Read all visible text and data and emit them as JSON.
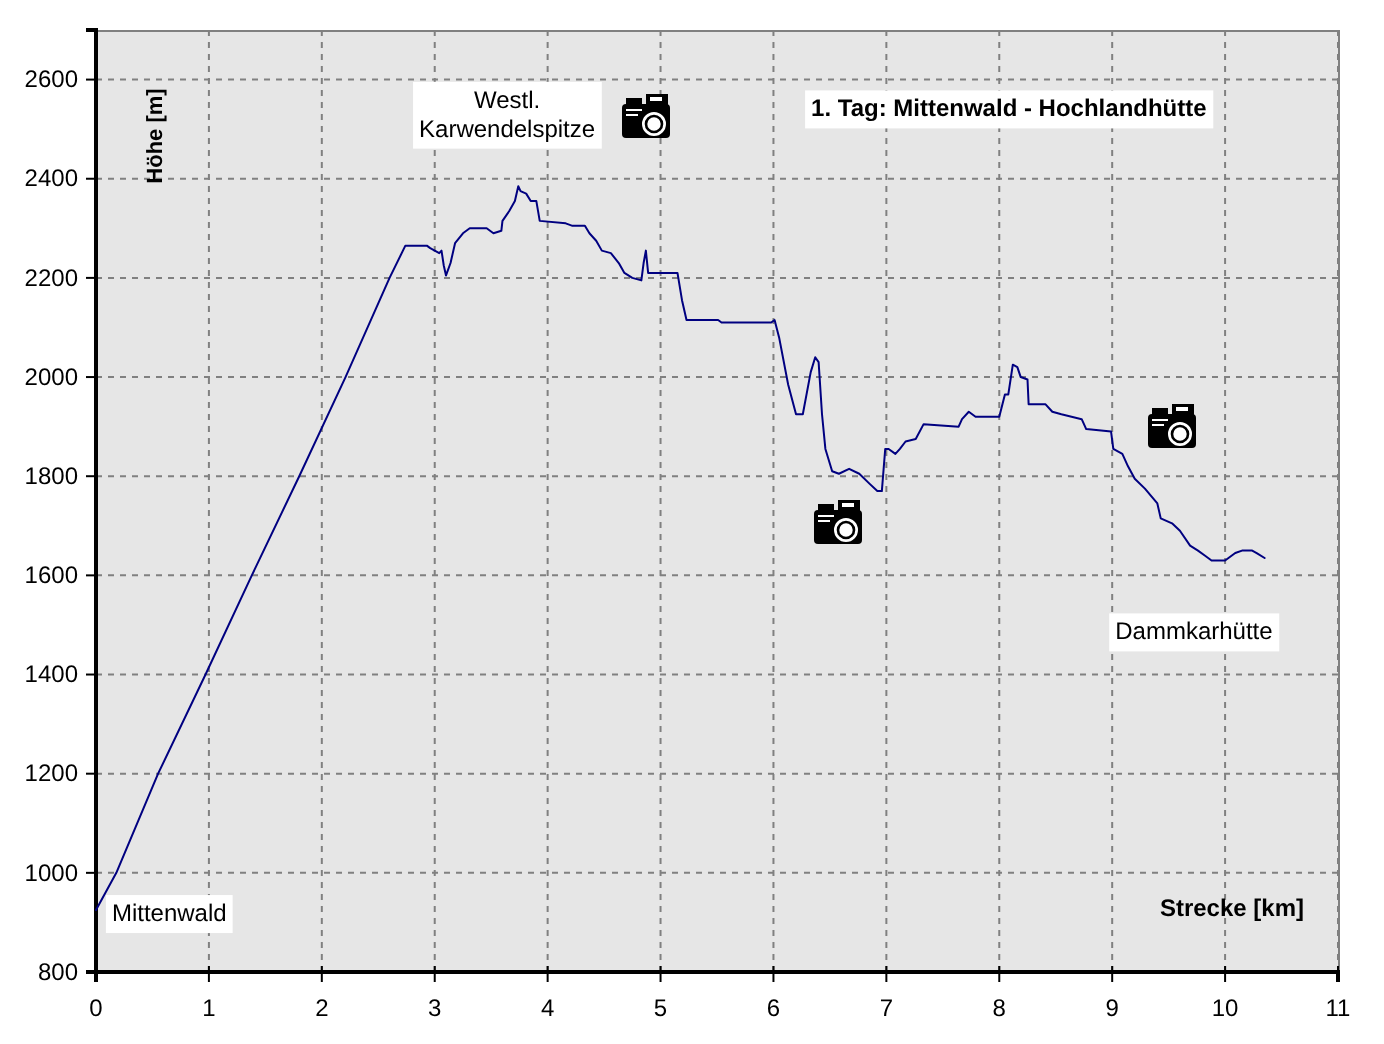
{
  "chart_data": {
    "type": "line",
    "title": "1. Tag: Mittenwald - Hochlandhütte",
    "xlabel": "Strecke [km]",
    "ylabel": "Höhe [m]",
    "x": [
      0,
      0.18,
      0.55,
      0.97,
      1.38,
      1.8,
      2.21,
      2.6,
      2.74,
      2.93,
      2.96,
      3.0,
      3.04,
      3.06,
      3.08,
      3.1,
      3.14,
      3.18,
      3.25,
      3.31,
      3.46,
      3.52,
      3.59,
      3.6,
      3.66,
      3.71,
      3.74,
      3.76,
      3.81,
      3.85,
      3.9,
      3.93,
      4.16,
      4.22,
      4.33,
      4.37,
      4.43,
      4.48,
      4.56,
      4.63,
      4.68,
      4.75,
      4.83,
      4.85,
      4.87,
      4.89,
      5.15,
      5.19,
      5.23,
      5.51,
      5.54,
      5.98,
      6.01,
      6.05,
      6.13,
      6.2,
      6.26,
      6.33,
      6.37,
      6.4,
      6.43,
      6.46,
      6.52,
      6.58,
      6.67,
      6.76,
      6.85,
      6.92,
      6.96,
      6.99,
      7.02,
      7.08,
      7.12,
      7.17,
      7.26,
      7.33,
      7.64,
      7.67,
      7.73,
      7.79,
      8.0,
      8.05,
      8.08,
      8.12,
      8.16,
      8.19,
      8.25,
      8.26,
      8.41,
      8.47,
      8.55,
      8.64,
      8.73,
      8.77,
      8.99,
      9.01,
      9.09,
      9.14,
      9.2,
      9.29,
      9.4,
      9.43,
      9.53,
      9.6,
      9.69,
      9.76,
      9.82,
      9.88,
      10.0,
      10.09,
      10.15,
      10.24,
      10.28,
      10.35
    ],
    "series": [
      {
        "color": "#000080",
        "values": [
          925,
          1000,
          1200,
          1400,
          1600,
          1800,
          2000,
          2200,
          2265,
          2265,
          2260,
          2255,
          2250,
          2255,
          2225,
          2205,
          2230,
          2270,
          2290,
          2300,
          2300,
          2290,
          2295,
          2315,
          2335,
          2355,
          2385,
          2375,
          2370,
          2355,
          2355,
          2315,
          2310,
          2305,
          2305,
          2290,
          2275,
          2255,
          2250,
          2230,
          2210,
          2200,
          2195,
          2230,
          2255,
          2210,
          2210,
          2155,
          2115,
          2115,
          2110,
          2110,
          2115,
          2080,
          1985,
          1925,
          1925,
          2010,
          2040,
          2030,
          1925,
          1855,
          1810,
          1805,
          1815,
          1805,
          1785,
          1770,
          1770,
          1855,
          1855,
          1845,
          1855,
          1870,
          1875,
          1905,
          1900,
          1915,
          1930,
          1920,
          1920,
          1965,
          1965,
          2025,
          2020,
          2000,
          1995,
          1945,
          1945,
          1930,
          1925,
          1920,
          1915,
          1895,
          1890,
          1855,
          1845,
          1820,
          1795,
          1775,
          1745,
          1715,
          1705,
          1690,
          1660,
          1650,
          1640,
          1630,
          1630,
          1645,
          1650,
          1650,
          1645,
          1635
        ]
      }
    ],
    "xlim": [
      0,
      11
    ],
    "ylim": [
      800,
      2700
    ],
    "xticks": [
      0,
      1,
      2,
      3,
      4,
      5,
      6,
      7,
      8,
      9,
      10,
      11
    ],
    "yticks": [
      800,
      1000,
      1200,
      1400,
      1600,
      1800,
      2000,
      2200,
      2400,
      2600
    ],
    "grid": true,
    "line_style": "solid",
    "annotations": [
      "Westl.\nKarwendelspitze",
      "Mittenwald",
      "Dammkarhütte"
    ]
  }
}
